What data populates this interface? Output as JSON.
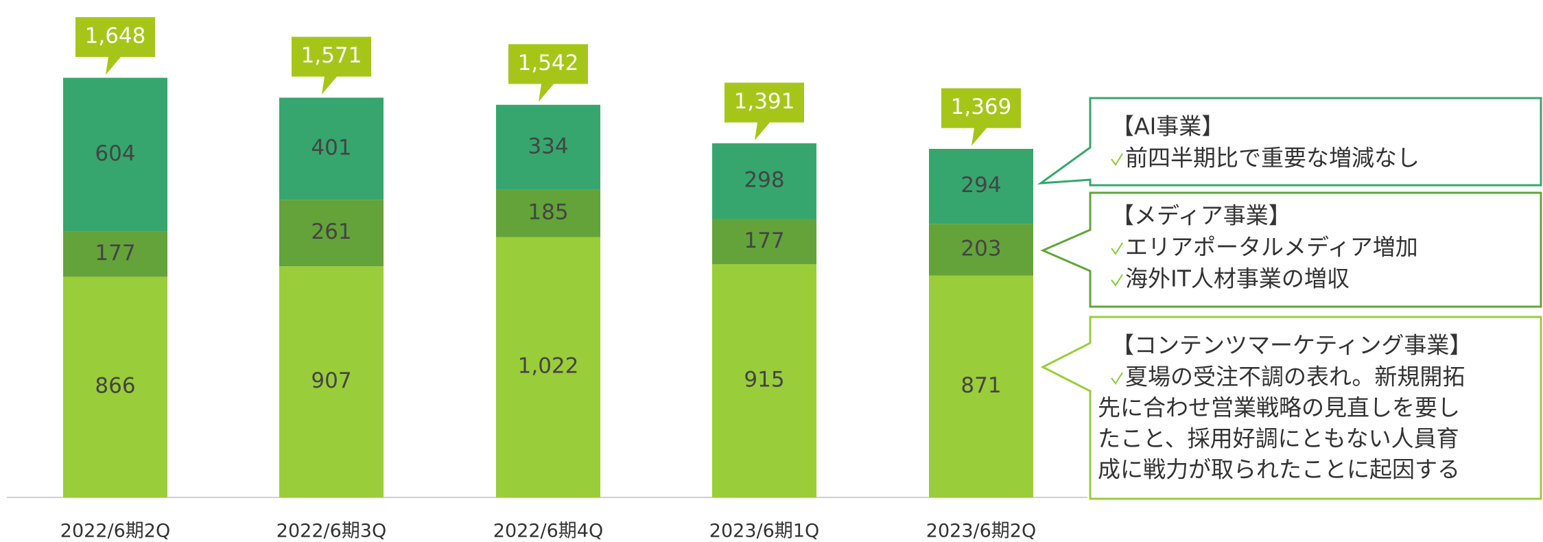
{
  "chart_data": {
    "type": "stacked-bar",
    "categories": [
      "2022/6期2Q",
      "2022/6期3Q",
      "2022/6期4Q",
      "2023/6期1Q",
      "2023/6期2Q"
    ],
    "series": [
      {
        "color": "#9acd3a",
        "values": [
          866,
          907,
          1022,
          915,
          871
        ],
        "value_labels": [
          "866",
          "907",
          "1,022",
          "915",
          "871"
        ]
      },
      {
        "color": "#63a33a",
        "values": [
          177,
          261,
          185,
          177,
          203
        ]
      },
      {
        "color": "#36a66e",
        "values": [
          604,
          401,
          334,
          298,
          294
        ]
      }
    ],
    "totals": {
      "color": "#a5c618",
      "values": [
        1648,
        1571,
        1542,
        1391,
        1369
      ],
      "value_labels": [
        "1,648",
        "1,571",
        "1,542",
        "1,391",
        "1,369"
      ]
    },
    "annotations": [
      {
        "title": "【AI事業】",
        "checks": [
          "前四半期比で重要な増減なし"
        ],
        "lines": [],
        "color": "#36a66e"
      },
      {
        "title": "【メディア事業】",
        "checks": [
          "エリアポータルメディア増加",
          "海外IT人材事業の増収"
        ],
        "lines": [],
        "color": "#63a33a"
      },
      {
        "title": "【コンテンツマーケティング事業】",
        "checks": [
          "夏場の受注不調の表れ。新規開拓"
        ],
        "lines": [
          "先に合わせ営業戦略の見直しを要し",
          "たこと、採用好調にともない人員育",
          "成に戦力が取られたことに起因する"
        ],
        "color": "#9acd3a"
      }
    ]
  }
}
